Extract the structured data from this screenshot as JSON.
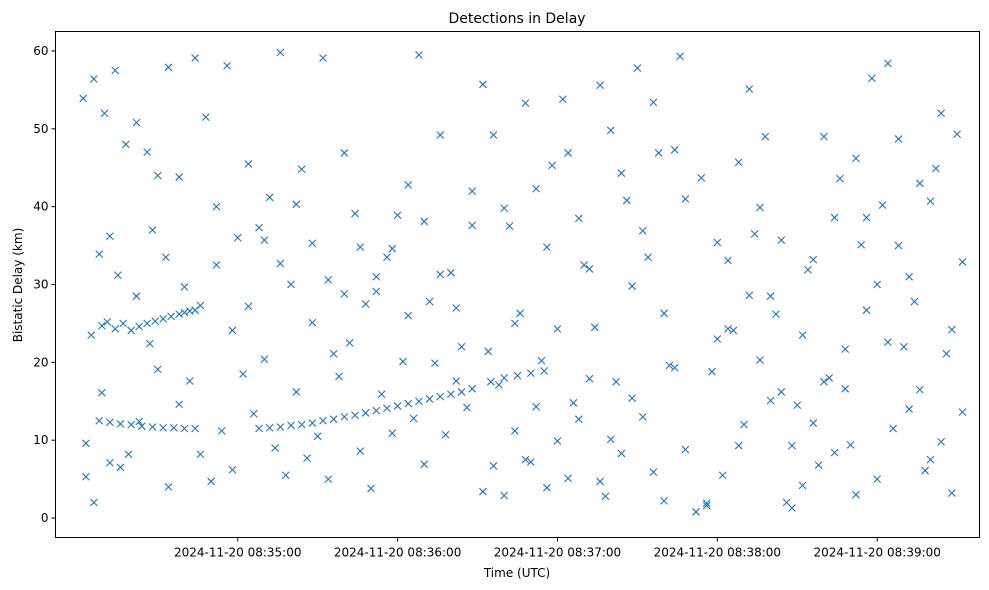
{
  "chart_data": {
    "type": "scatter",
    "title": "Detections in Delay",
    "xlabel": "Time (UTC)",
    "ylabel": "Bistatic Delay (km)",
    "x_tick_labels": [
      "2024-11-20 08:35:00",
      "2024-11-20 08:36:00",
      "2024-11-20 08:37:00",
      "2024-11-20 08:38:00",
      "2024-11-20 08:39:00"
    ],
    "x_tick_seconds": [
      60,
      120,
      180,
      240,
      300
    ],
    "y_ticks": [
      0,
      10,
      20,
      30,
      40,
      50,
      60
    ],
    "xlim_seconds_from_08_34_00": [
      -8.4,
      338.4
    ],
    "ylim": [
      -2.5,
      62.5
    ],
    "grid": false,
    "legend": "none",
    "marker": "x",
    "color": "#1f77b4",
    "series": [
      {
        "points": [
          [
            5,
            23.5
          ],
          [
            9,
            24.7
          ],
          [
            11,
            25.2
          ],
          [
            14,
            24.3
          ],
          [
            17,
            25.0
          ],
          [
            20,
            24.1
          ],
          [
            23,
            24.6
          ],
          [
            26,
            25.0
          ],
          [
            29,
            25.3
          ],
          [
            32,
            25.6
          ],
          [
            35,
            25.9
          ],
          [
            38,
            26.2
          ],
          [
            40,
            26.4
          ],
          [
            42,
            26.6
          ],
          [
            44,
            26.7
          ],
          [
            8,
            12.5
          ],
          [
            12,
            12.3
          ],
          [
            16,
            12.1
          ],
          [
            20,
            12.0
          ],
          [
            24,
            11.8
          ],
          [
            28,
            11.7
          ],
          [
            32,
            11.6
          ],
          [
            36,
            11.6
          ],
          [
            40,
            11.5
          ],
          [
            44,
            11.5
          ],
          [
            68,
            11.5
          ],
          [
            72,
            11.6
          ],
          [
            76,
            11.7
          ],
          [
            80,
            11.9
          ],
          [
            84,
            12.0
          ],
          [
            88,
            12.2
          ],
          [
            92,
            12.5
          ],
          [
            96,
            12.7
          ],
          [
            100,
            13.0
          ],
          [
            104,
            13.2
          ],
          [
            108,
            13.5
          ],
          [
            112,
            13.8
          ],
          [
            116,
            14.1
          ],
          [
            120,
            14.4
          ],
          [
            124,
            14.7
          ],
          [
            128,
            15.0
          ],
          [
            132,
            15.3
          ],
          [
            136,
            15.6
          ],
          [
            140,
            15.9
          ],
          [
            144,
            16.2
          ],
          [
            148,
            16.6
          ],
          [
            155,
            17.5
          ],
          [
            160,
            18.0
          ],
          [
            165,
            18.3
          ],
          [
            170,
            18.6
          ],
          [
            175,
            18.9
          ],
          [
            2,
            53.9
          ],
          [
            6,
            56.4
          ],
          [
            10,
            52.0
          ],
          [
            14,
            57.5
          ],
          [
            18,
            48.0
          ],
          [
            22,
            50.8
          ],
          [
            26,
            47.0
          ],
          [
            30,
            44.0
          ],
          [
            34,
            57.9
          ],
          [
            38,
            43.8
          ],
          [
            44,
            59.1
          ],
          [
            48,
            51.5
          ],
          [
            52,
            40.0
          ],
          [
            56,
            58.1
          ],
          [
            60,
            36.0
          ],
          [
            64,
            45.5
          ],
          [
            68,
            37.3
          ],
          [
            72,
            41.2
          ],
          [
            76,
            59.8
          ],
          [
            80,
            30.0
          ],
          [
            84,
            44.8
          ],
          [
            88,
            35.3
          ],
          [
            92,
            59.1
          ],
          [
            96,
            21.1
          ],
          [
            100,
            46.9
          ],
          [
            104,
            39.1
          ],
          [
            108,
            27.5
          ],
          [
            112,
            29.1
          ],
          [
            116,
            33.5
          ],
          [
            120,
            38.9
          ],
          [
            124,
            42.8
          ],
          [
            128,
            59.5
          ],
          [
            132,
            27.8
          ],
          [
            136,
            49.2
          ],
          [
            140,
            31.5
          ],
          [
            144,
            22.0
          ],
          [
            148,
            37.6
          ],
          [
            3,
            9.6
          ],
          [
            3,
            5.3
          ],
          [
            6,
            2.0
          ],
          [
            9,
            16.1
          ],
          [
            12,
            7.1
          ],
          [
            16,
            6.5
          ],
          [
            19,
            8.2
          ],
          [
            23,
            12.4
          ],
          [
            27,
            22.4
          ],
          [
            30,
            19.1
          ],
          [
            34,
            4.0
          ],
          [
            38,
            14.6
          ],
          [
            42,
            17.6
          ],
          [
            46,
            8.2
          ],
          [
            50,
            4.7
          ],
          [
            54,
            11.2
          ],
          [
            58,
            6.2
          ],
          [
            62,
            18.5
          ],
          [
            66,
            13.4
          ],
          [
            70,
            20.4
          ],
          [
            74,
            9.0
          ],
          [
            78,
            5.5
          ],
          [
            82,
            16.2
          ],
          [
            86,
            7.7
          ],
          [
            90,
            10.5
          ],
          [
            94,
            5.0
          ],
          [
            98,
            18.2
          ],
          [
            102,
            22.5
          ],
          [
            106,
            8.6
          ],
          [
            110,
            3.8
          ],
          [
            114,
            15.9
          ],
          [
            118,
            10.9
          ],
          [
            122,
            20.1
          ],
          [
            126,
            12.8
          ],
          [
            130,
            6.9
          ],
          [
            134,
            19.9
          ],
          [
            138,
            10.7
          ],
          [
            142,
            17.6
          ],
          [
            146,
            14.2
          ],
          [
            8,
            33.9
          ],
          [
            12,
            36.2
          ],
          [
            15,
            31.2
          ],
          [
            22,
            28.5
          ],
          [
            28,
            37.0
          ],
          [
            33,
            33.5
          ],
          [
            40,
            29.7
          ],
          [
            46,
            27.3
          ],
          [
            52,
            32.5
          ],
          [
            58,
            24.1
          ],
          [
            64,
            27.2
          ],
          [
            70,
            35.7
          ],
          [
            76,
            32.7
          ],
          [
            82,
            40.3
          ],
          [
            88,
            25.1
          ],
          [
            94,
            30.6
          ],
          [
            100,
            28.8
          ],
          [
            106,
            34.8
          ],
          [
            112,
            31.0
          ],
          [
            118,
            34.6
          ],
          [
            124,
            26.0
          ],
          [
            130,
            38.1
          ],
          [
            136,
            31.3
          ],
          [
            142,
            27.0
          ],
          [
            148,
            42.0
          ],
          [
            152,
            55.7
          ],
          [
            156,
            49.2
          ],
          [
            160,
            39.8
          ],
          [
            164,
            25.0
          ],
          [
            168,
            53.3
          ],
          [
            172,
            42.3
          ],
          [
            176,
            34.8
          ],
          [
            180,
            24.3
          ],
          [
            184,
            46.9
          ],
          [
            188,
            38.5
          ],
          [
            192,
            32.0
          ],
          [
            196,
            55.6
          ],
          [
            200,
            49.8
          ],
          [
            204,
            44.3
          ],
          [
            208,
            29.8
          ],
          [
            212,
            36.9
          ],
          [
            216,
            53.4
          ],
          [
            220,
            26.3
          ],
          [
            224,
            47.3
          ],
          [
            228,
            41.0
          ],
          [
            152,
            3.4
          ],
          [
            156,
            6.7
          ],
          [
            160,
            2.9
          ],
          [
            164,
            11.2
          ],
          [
            168,
            7.5
          ],
          [
            172,
            14.3
          ],
          [
            176,
            3.9
          ],
          [
            180,
            9.9
          ],
          [
            184,
            5.1
          ],
          [
            188,
            12.7
          ],
          [
            192,
            17.9
          ],
          [
            196,
            4.7
          ],
          [
            200,
            10.1
          ],
          [
            204,
            8.3
          ],
          [
            208,
            15.4
          ],
          [
            212,
            13.0
          ],
          [
            216,
            5.9
          ],
          [
            220,
            2.2
          ],
          [
            224,
            19.3
          ],
          [
            228,
            8.8
          ],
          [
            232,
            0.8
          ],
          [
            236,
            1.9
          ],
          [
            240,
            23.0
          ],
          [
            244,
            33.1
          ],
          [
            248,
            45.7
          ],
          [
            252,
            55.1
          ],
          [
            256,
            39.9
          ],
          [
            260,
            28.5
          ],
          [
            264,
            16.2
          ],
          [
            268,
            9.3
          ],
          [
            272,
            4.2
          ],
          [
            276,
            12.2
          ],
          [
            280,
            49.0
          ],
          [
            284,
            38.6
          ],
          [
            288,
            21.7
          ],
          [
            292,
            3.0
          ],
          [
            296,
            26.7
          ],
          [
            300,
            30.0
          ],
          [
            304,
            58.4
          ],
          [
            308,
            35.0
          ],
          [
            312,
            14.0
          ],
          [
            316,
            43.0
          ],
          [
            320,
            7.5
          ],
          [
            324,
            52.0
          ],
          [
            328,
            3.2
          ],
          [
            332,
            32.9
          ],
          [
            234,
            43.7
          ],
          [
            238,
            18.8
          ],
          [
            242,
            5.5
          ],
          [
            246,
            24.1
          ],
          [
            250,
            12.0
          ],
          [
            254,
            36.5
          ],
          [
            258,
            49.0
          ],
          [
            262,
            26.2
          ],
          [
            266,
            2.0
          ],
          [
            270,
            14.5
          ],
          [
            274,
            31.9
          ],
          [
            278,
            6.8
          ],
          [
            282,
            18.0
          ],
          [
            286,
            43.6
          ],
          [
            290,
            9.4
          ],
          [
            294,
            35.1
          ],
          [
            298,
            56.5
          ],
          [
            302,
            40.2
          ],
          [
            306,
            11.5
          ],
          [
            310,
            22.0
          ],
          [
            314,
            27.8
          ],
          [
            318,
            6.1
          ],
          [
            322,
            44.9
          ],
          [
            326,
            21.1
          ],
          [
            330,
            49.3
          ],
          [
            236,
            1.6
          ],
          [
            240,
            35.4
          ],
          [
            244,
            24.3
          ],
          [
            248,
            9.3
          ],
          [
            252,
            28.6
          ],
          [
            256,
            20.3
          ],
          [
            260,
            15.1
          ],
          [
            264,
            35.7
          ],
          [
            268,
            1.3
          ],
          [
            272,
            23.5
          ],
          [
            276,
            33.2
          ],
          [
            280,
            17.5
          ],
          [
            284,
            8.4
          ],
          [
            288,
            16.6
          ],
          [
            292,
            46.2
          ],
          [
            296,
            38.6
          ],
          [
            300,
            5.0
          ],
          [
            304,
            22.6
          ],
          [
            308,
            48.7
          ],
          [
            312,
            31.0
          ],
          [
            316,
            16.5
          ],
          [
            320,
            40.7
          ],
          [
            324,
            9.8
          ],
          [
            328,
            24.2
          ],
          [
            332,
            13.6
          ],
          [
            154,
            21.4
          ],
          [
            158,
            17.1
          ],
          [
            162,
            37.5
          ],
          [
            166,
            26.3
          ],
          [
            170,
            7.2
          ],
          [
            174,
            20.2
          ],
          [
            178,
            45.3
          ],
          [
            182,
            53.8
          ],
          [
            186,
            14.8
          ],
          [
            190,
            32.5
          ],
          [
            194,
            24.5
          ],
          [
            198,
            2.8
          ],
          [
            202,
            17.5
          ],
          [
            206,
            40.8
          ],
          [
            210,
            57.8
          ],
          [
            214,
            33.5
          ],
          [
            218,
            46.9
          ],
          [
            222,
            19.6
          ],
          [
            226,
            59.3
          ]
        ]
      }
    ]
  }
}
